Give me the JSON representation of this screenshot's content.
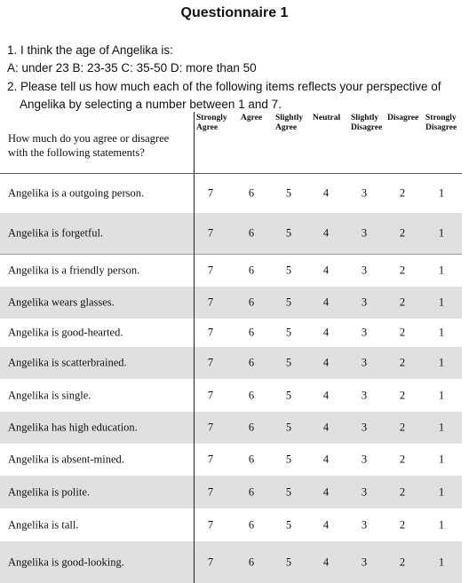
{
  "title": "Questionnaire 1",
  "question1": {
    "text": "1. I think the age of Angelika is:",
    "options": "A: under 23   B: 23-35   C: 35-50   D: more than 50"
  },
  "question2": {
    "line1": "2. Please tell us how much each of the following items reflects your perspective of",
    "line2": "Angelika by selecting a number between 1 and 7."
  },
  "table": {
    "question_header_line1": "How much do you agree or disagree",
    "question_header_line2": "with the following statements?",
    "scale": [
      {
        "line1": "Strongly",
        "line2": "Agree",
        "value": "7"
      },
      {
        "line1": "Agree",
        "line2": "",
        "value": "6"
      },
      {
        "line1": "Slightly",
        "line2": "Agree",
        "value": "5"
      },
      {
        "line1": "Neutral",
        "line2": "",
        "value": "4"
      },
      {
        "line1": "Slightly",
        "line2": "Disagree",
        "value": "3"
      },
      {
        "line1": "Disagree",
        "line2": "",
        "value": "2"
      },
      {
        "line1": "Strongly",
        "line2": "Disagree",
        "value": "1"
      }
    ],
    "statements": [
      "Angelika is a outgoing person.",
      "Angelika is forgetful.",
      "Angelika is a friendly person.",
      "Angelika wears glasses.",
      "Angelika is good-hearted.",
      "Angelika is scatterbrained.",
      "Angelika is single.",
      "Angelika has high education.",
      "Angelika is absent-mined.",
      "Angelika is polite.",
      "Angelika is tall.",
      "Angelika is good-looking."
    ]
  }
}
